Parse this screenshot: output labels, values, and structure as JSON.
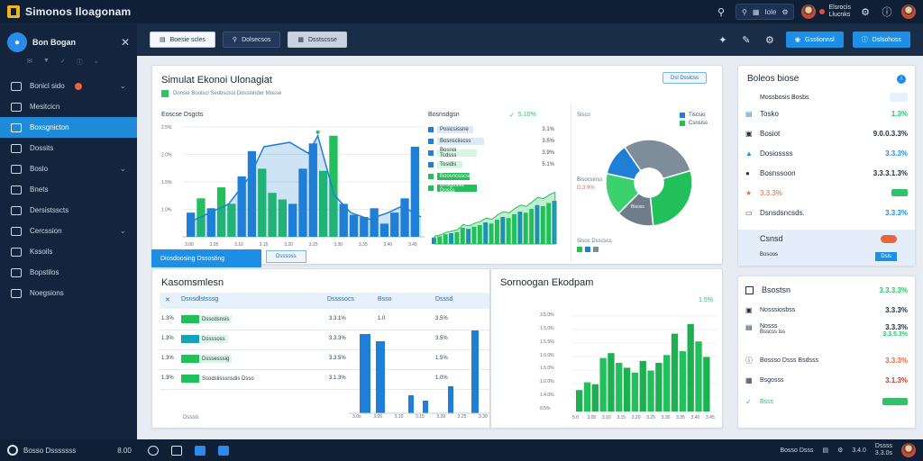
{
  "app": {
    "title": "Simonos Iloagonam"
  },
  "topbar": {
    "search_label": "Iole",
    "user_line1": "Elsrocis",
    "user_line2": "Llucnks"
  },
  "sidebar": {
    "title": "Bon Bogan",
    "items": [
      {
        "label": "Bonicl sido",
        "icon": "home-icon",
        "chevron": true,
        "dot": true
      },
      {
        "label": "Mesitcicn",
        "icon": "monitor-icon"
      },
      {
        "label": "Boxsgnicton",
        "icon": "users-icon",
        "active": true
      },
      {
        "label": "Dossits",
        "icon": "chart-icon"
      },
      {
        "label": "Boslo",
        "icon": "folder-icon",
        "chevron": true
      },
      {
        "label": "Bnets",
        "icon": "document-icon"
      },
      {
        "label": "Dersistsscts",
        "icon": "list-icon"
      },
      {
        "label": "Cercssion",
        "icon": "table-icon",
        "chevron": true
      },
      {
        "label": "Kssoils",
        "icon": "tag-icon"
      },
      {
        "label": "Bopstilos",
        "icon": "settings-icon"
      },
      {
        "label": "Noegsions",
        "icon": "chat-icon"
      }
    ]
  },
  "toolbar": {
    "tabs": [
      "Boesie scles",
      "Dolsecsos",
      "Dsstscsse"
    ],
    "buttons": [
      "Gsstionnsl",
      "Dslsohoss"
    ]
  },
  "sim_card": {
    "title": "Simulat Ekonoi Ulonagiat",
    "subtitle": "Donsie Boolscl Seobsossl Dosslonder Mosse",
    "button": "Dsl Dsslcss",
    "chart1": {
      "label": "Eoscse Dsgcts",
      "yticks": [
        "1.0%",
        "1.5%",
        "2.0%",
        "2.5%"
      ],
      "xticks": [
        "3.00",
        "3.05",
        "3.10",
        "3.15",
        "3.20",
        "3.25",
        "3.30",
        "3.35",
        "3.40",
        "3.45"
      ]
    },
    "chart2": {
      "label": "Bosnsdgsn",
      "value": "5.10%",
      "legend": [
        {
          "label": "Posicsissne",
          "value": "3.1%"
        },
        {
          "label": "Bosnsciiscss",
          "value": "3.5%"
        },
        {
          "label": "Bosnoi Tcdsss",
          "value": "3.9%"
        },
        {
          "label": "Tosidis",
          "value": "5.1%"
        },
        {
          "label": "Boosncsscsis",
          "value": ""
        },
        {
          "label": "Dnsgosso Dosss",
          "value": ""
        }
      ]
    },
    "donut": {
      "label": "Sisco",
      "legend_top": [
        "Tiscsio",
        "Csnsiss"
      ],
      "left_label_1": "Bisocsinss",
      "left_label_2": "D.3.9%",
      "bottom_legend": "Sisos Dsscscs",
      "center_label": "Bisoss",
      "slices": [
        {
          "name": "grey",
          "value": 30,
          "color": "#7f8c9a"
        },
        {
          "name": "green",
          "value": 28,
          "color": "#22c05a"
        },
        {
          "name": "grey2",
          "value": 14,
          "color": "#6f7c8a"
        },
        {
          "name": "green2",
          "value": 16,
          "color": "#3bd26d"
        },
        {
          "name": "blue",
          "value": 12,
          "color": "#1f7fd6"
        }
      ]
    }
  },
  "section_tabs": {
    "active": "Diosdoosing Dssosting",
    "secondary": "Dsssoss"
  },
  "table_card": {
    "title": "Kasomsmlesn",
    "headers": [
      "Dsnsdlstsssg",
      "Dssssocs",
      "Bsso",
      "Dsssd"
    ],
    "rows": [
      {
        "label": "1.3%",
        "name": "Dsscdsnsis",
        "v1": "3.3.1%",
        "v2": "1.0",
        "v3": "3.5%"
      },
      {
        "label": "1.3%",
        "name": "Dssssoss",
        "v1": "3.3.3%",
        "v2": "",
        "v3": "3.5%"
      },
      {
        "label": "1.3%",
        "name": "Dsssesssig",
        "v1": "3.3.5%",
        "v2": "",
        "v3": "1.5%"
      },
      {
        "label": "1.3%",
        "name": "Ssodslisssnsdis Dsso",
        "v1": "3.1.3%",
        "v2": "",
        "v3": "1.0%"
      }
    ],
    "footer": "Dsssls",
    "xticks": [
      "3.0s",
      "3.05",
      "3.10",
      "3.15",
      "3.20",
      "3.25",
      "3.30"
    ]
  },
  "sorn_card": {
    "title": "Sornoogan Ekodpam",
    "value": "1.5%",
    "yticks": [
      "3.5.0%",
      "1.5.0%",
      "1.5.5%",
      "1.0.0%",
      "1.5.0%",
      "1.0.0%",
      "1.4.0%",
      "0.5%"
    ],
    "xticks": [
      "5.0",
      "3.05",
      "3.10",
      "3.15",
      "3.20",
      "3.25",
      "3.30",
      "3.35",
      "3.40",
      "3.45"
    ]
  },
  "right_panel": {
    "title": "Boleos biose",
    "subtitle": "Mossbosis Bosbs",
    "rows": [
      {
        "icon": "chart-icon",
        "label": "Tosko",
        "value": "1.3%",
        "color": "#2fc26a"
      },
      {
        "icon": "wallet-icon",
        "label": "Bosiot",
        "value": "9.0.0.3.3%",
        "color": "#223142"
      },
      {
        "icon": "triangle-icon",
        "label": "Dosiossss",
        "value": "3.3.3%",
        "color": "#1e8fe6"
      },
      {
        "icon": "user-icon",
        "label": "Bosnssoon",
        "value": "3.3.3.1.3%",
        "color": "#223142"
      },
      {
        "icon": "star-icon",
        "label": "3.3.3%",
        "value": "",
        "color": "#e9663a"
      },
      {
        "icon": "card-icon",
        "label": "Dsnsdsncsds.",
        "value": "3.3.3%",
        "color": "#1e8fe6"
      }
    ],
    "highlight": {
      "label": "Csnsd",
      "sub": "Bosoos",
      "button": "Dsls"
    }
  },
  "right_panel2": {
    "title": "Bsostsn",
    "title_value": "3.3.3.3%",
    "rows": [
      {
        "label": "Nosssiosbss",
        "value": "3.3.3%",
        "color": "#223142"
      },
      {
        "label": "Nosss",
        "sub": "Bsscss iss",
        "value": "3.3.3%",
        "sub_value": "3.3.5.3%",
        "color": "#223142",
        "sub_color": "#2fc26a"
      },
      {
        "label": "Bossso Dsss Bsdsss",
        "value": "3.3.3%",
        "color": "#e9663a"
      },
      {
        "label": "Bsgosss",
        "value": "3.1.3%",
        "color": "#c33d30"
      },
      {
        "label": "Bsss",
        "value": "",
        "color": "#2fc26a"
      }
    ]
  },
  "bottombar": {
    "status": "Bosso Dsssssss",
    "time": "8.00",
    "right_text": "Bosso Dsss",
    "right_value": "3.4.0",
    "right_sub1": "Dssss",
    "right_sub2": "3.3.0s"
  }
}
